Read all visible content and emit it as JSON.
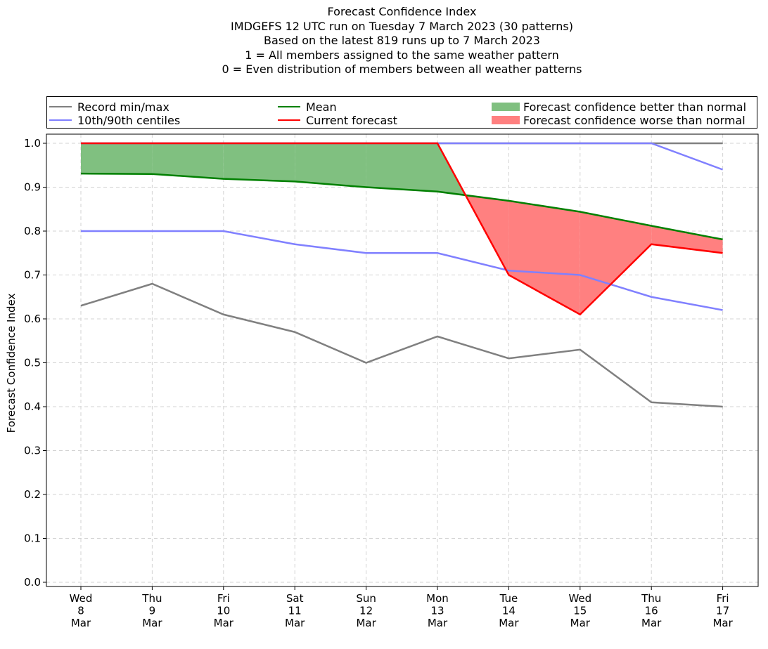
{
  "chart_data": {
    "type": "line",
    "title_lines": [
      "Forecast Confidence Index",
      "IMDGEFS 12 UTC run on Tuesday 7 March 2023 (30 patterns)",
      "Based on the latest 819 runs up to 7 March 2023",
      "1 = All members assigned to the same weather pattern",
      "0 = Even distribution of members between all weather patterns"
    ],
    "ylabel": "Forecast Confidence Index",
    "ylim": [
      0.0,
      1.0
    ],
    "yticks": [
      "0.0",
      "0.1",
      "0.2",
      "0.3",
      "0.4",
      "0.5",
      "0.6",
      "0.7",
      "0.8",
      "0.9",
      "1.0"
    ],
    "x_labels": [
      [
        "Wed",
        "8",
        "Mar"
      ],
      [
        "Thu",
        "9",
        "Mar"
      ],
      [
        "Fri",
        "10",
        "Mar"
      ],
      [
        "Sat",
        "11",
        "Mar"
      ],
      [
        "Sun",
        "12",
        "Mar"
      ],
      [
        "Mon",
        "13",
        "Mar"
      ],
      [
        "Tue",
        "14",
        "Mar"
      ],
      [
        "Wed",
        "15",
        "Mar"
      ],
      [
        "Thu",
        "16",
        "Mar"
      ],
      [
        "Fri",
        "17",
        "Mar"
      ]
    ],
    "grid": true,
    "legend_position": "top",
    "legend": {
      "record": "Record min/max",
      "centiles": "10th/90th centiles",
      "mean": "Mean",
      "current": "Current forecast",
      "better": "Forecast confidence better than normal",
      "worse": "Forecast confidence worse than normal"
    },
    "colors": {
      "record": "#808080",
      "centiles": "#8080ff",
      "mean": "#008000",
      "current": "#ff0000",
      "better": "#80c080",
      "worse": "#ff8080"
    },
    "series": {
      "record_min": [
        0.63,
        0.68,
        0.61,
        0.57,
        0.5,
        0.56,
        0.51,
        0.53,
        0.41,
        0.4
      ],
      "record_max": [
        1.0,
        1.0,
        1.0,
        1.0,
        1.0,
        1.0,
        1.0,
        1.0,
        1.0,
        1.0
      ],
      "p10": [
        0.8,
        0.8,
        0.8,
        0.77,
        0.75,
        0.75,
        0.71,
        0.7,
        0.65,
        0.62
      ],
      "p90": [
        1.0,
        1.0,
        1.0,
        1.0,
        1.0,
        1.0,
        1.0,
        1.0,
        1.0,
        0.94
      ],
      "mean": [
        0.931,
        0.93,
        0.919,
        0.913,
        0.9,
        0.89,
        0.869,
        0.844,
        0.812,
        0.781
      ],
      "current": [
        1.0,
        1.0,
        1.0,
        1.0,
        1.0,
        1.0,
        0.7,
        0.61,
        0.77,
        0.75
      ]
    }
  }
}
